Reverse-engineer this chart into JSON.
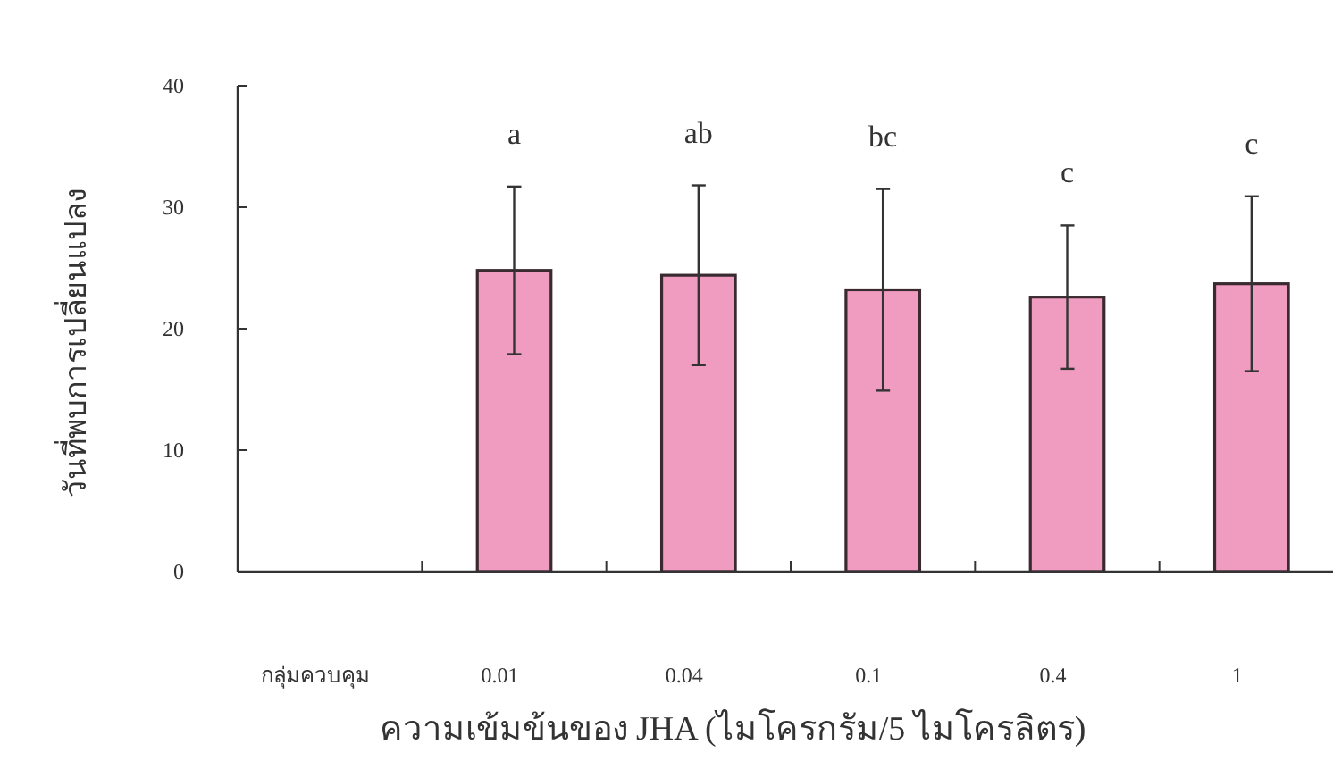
{
  "chart_data": {
    "type": "bar",
    "xlabel": "ความเข้มข้นของ JHA (ไมโครกรัม/5 ไมโครลิตร)",
    "ylabel": "วันที่พบการเปลี่ยนแปลง",
    "categories": [
      "กลุ่มควบคุม",
      "0.01",
      "0.04",
      "0.1",
      "0.4",
      "1"
    ],
    "values": [
      0,
      24.8,
      24.4,
      23.2,
      22.6,
      23.7
    ],
    "errors": [
      null,
      6.9,
      7.4,
      8.3,
      5.9,
      7.2
    ],
    "color": "#f09cc0",
    "ylim": [
      0,
      40
    ],
    "yticks": [
      0,
      10,
      20,
      30,
      40
    ],
    "annotations": [
      "a",
      "ab",
      "bc",
      "c",
      "c"
    ]
  }
}
